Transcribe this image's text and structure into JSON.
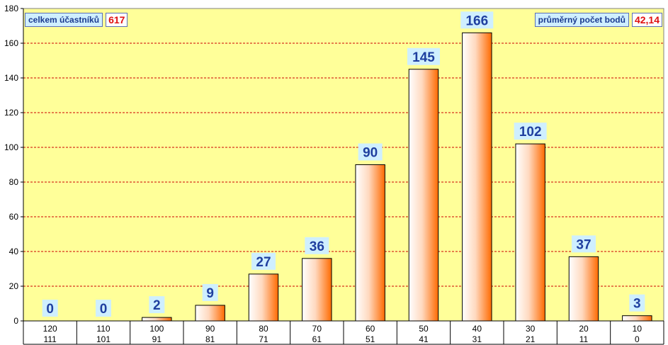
{
  "info": {
    "participants_label": "celkem účastníků",
    "participants_value": "617",
    "average_label": "průměrný počet bodů",
    "average_value": "42,14"
  },
  "chart_data": {
    "type": "bar",
    "categories": [
      {
        "top": "120",
        "bottom": "111"
      },
      {
        "top": "110",
        "bottom": "101"
      },
      {
        "top": "100",
        "bottom": "91"
      },
      {
        "top": "90",
        "bottom": "81"
      },
      {
        "top": "80",
        "bottom": "71"
      },
      {
        "top": "70",
        "bottom": "61"
      },
      {
        "top": "60",
        "bottom": "51"
      },
      {
        "top": "50",
        "bottom": "41"
      },
      {
        "top": "40",
        "bottom": "31"
      },
      {
        "top": "30",
        "bottom": "21"
      },
      {
        "top": "20",
        "bottom": "11"
      },
      {
        "top": "10",
        "bottom": "0"
      }
    ],
    "values": [
      0,
      0,
      2,
      9,
      27,
      36,
      90,
      145,
      166,
      102,
      37,
      3
    ],
    "ylim": [
      0,
      180
    ],
    "yticks": [
      0,
      20,
      40,
      60,
      80,
      100,
      120,
      140,
      160,
      180
    ],
    "grid": true,
    "colors": {
      "plot_background": "#ffff99",
      "gridline": "#cc0000",
      "bar_light": "#ffffff",
      "bar_dark": "#ff6a00",
      "label_background": "#cfefff",
      "label_text": "#1f3f9f"
    }
  }
}
